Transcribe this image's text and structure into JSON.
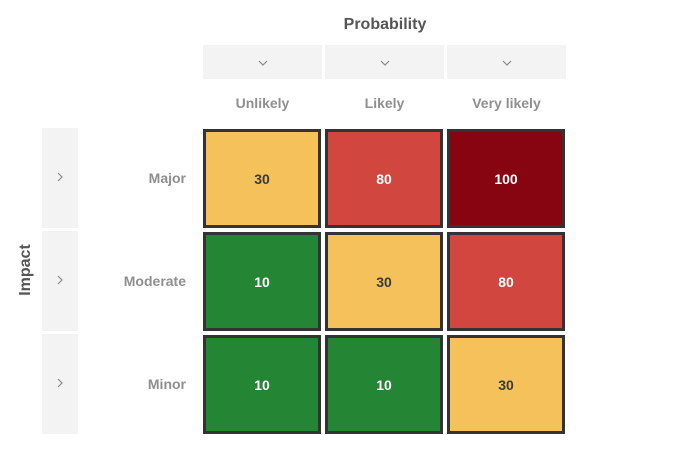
{
  "chart_data": {
    "type": "heatmap",
    "xlabel": "Probability",
    "ylabel": "Impact",
    "x_categories": [
      "Unlikely",
      "Likely",
      "Very likely"
    ],
    "y_categories": [
      "Major",
      "Moderate",
      "Minor"
    ],
    "values": [
      [
        30,
        80,
        100
      ],
      [
        10,
        30,
        80
      ],
      [
        10,
        10,
        30
      ]
    ],
    "colors": {
      "10": "#248535",
      "30": "#f4c15b",
      "80": "#d1463f",
      "100": "#870411"
    },
    "text_colors": {
      "10": "#ffffff",
      "30": "#3a3a3a",
      "80": "#ffffff",
      "100": "#ffffff"
    }
  },
  "icons": {
    "column_toggle": "chevron-down-icon",
    "row_toggle": "chevron-right-icon"
  }
}
